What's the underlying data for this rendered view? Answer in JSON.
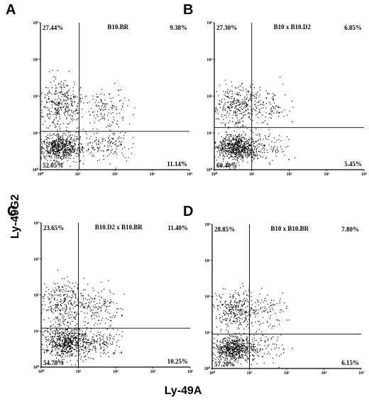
{
  "figure": {
    "ylabel": "Ly-49G2",
    "xlabel": "Ly-49A"
  },
  "chart_data": [
    {
      "type": "scatter",
      "panel": "A",
      "title": "B10.BR",
      "x_scale": "log",
      "y_scale": "log",
      "xlim": [
        1,
        10000
      ],
      "ylim": [
        1,
        10000
      ],
      "xticks": [
        "10⁰",
        "10¹",
        "10²",
        "10³",
        "10⁴"
      ],
      "yticks": [
        "10⁰",
        "10¹",
        "10²",
        "10³",
        "10⁴"
      ],
      "x_gate": 11,
      "y_gate": 11,
      "quadrants": {
        "upper_left": "27.44%",
        "upper_right": "9.38%",
        "lower_left": "52.05%",
        "lower_right": "11.14%"
      },
      "clusters": [
        {
          "cx": 3.5,
          "cy": 4,
          "sx": 0.3,
          "sy": 0.18,
          "n": 650
        },
        {
          "cx": 3.5,
          "cy": 60,
          "sx": 0.3,
          "sy": 0.3,
          "n": 340
        },
        {
          "cx": 60,
          "cy": 5,
          "sx": 0.33,
          "sy": 0.23,
          "n": 140
        },
        {
          "cx": 55,
          "cy": 50,
          "sx": 0.3,
          "sy": 0.26,
          "n": 120
        }
      ]
    },
    {
      "type": "scatter",
      "panel": "B",
      "title": "B10 x B10.D2",
      "x_scale": "log",
      "y_scale": "log",
      "xlim": [
        1,
        10000
      ],
      "ylim": [
        1,
        10000
      ],
      "xticks": [
        "10⁰",
        "10¹",
        "10²",
        "10³",
        "10⁴"
      ],
      "yticks": [
        "10⁰",
        "10¹",
        "10²",
        "10³",
        "10⁴"
      ],
      "x_gate": 10,
      "y_gate": 14,
      "quadrants": {
        "upper_left": "27.30%",
        "upper_right": "6.85%",
        "lower_left": "60.40%",
        "lower_right": "5.45%"
      },
      "clusters": [
        {
          "cx": 4,
          "cy": 4,
          "sx": 0.3,
          "sy": 0.18,
          "n": 750
        },
        {
          "cx": 4,
          "cy": 55,
          "sx": 0.32,
          "sy": 0.3,
          "n": 330
        },
        {
          "cx": 30,
          "cy": 4,
          "sx": 0.3,
          "sy": 0.2,
          "n": 70
        },
        {
          "cx": 30,
          "cy": 50,
          "sx": 0.28,
          "sy": 0.25,
          "n": 90
        }
      ]
    },
    {
      "type": "scatter",
      "panel": "C",
      "title": "B10.D2 x B10.BR",
      "x_scale": "log",
      "y_scale": "log",
      "xlim": [
        1,
        10000
      ],
      "ylim": [
        1,
        10000
      ],
      "xticks": [
        "10⁰",
        "10¹",
        "10²",
        "10³",
        "10⁴"
      ],
      "yticks": [
        "10⁰",
        "10¹",
        "10²",
        "10³",
        "10⁴"
      ],
      "x_gate": 10,
      "y_gate": 12,
      "quadrants": {
        "upper_left": "23.65%",
        "upper_right": "11.40%",
        "lower_left": "54.70%",
        "lower_right": "10.25%"
      },
      "clusters": [
        {
          "cx": 5,
          "cy": 5,
          "sx": 0.33,
          "sy": 0.22,
          "n": 700
        },
        {
          "cx": 4,
          "cy": 60,
          "sx": 0.32,
          "sy": 0.32,
          "n": 300
        },
        {
          "cx": 40,
          "cy": 5,
          "sx": 0.3,
          "sy": 0.22,
          "n": 130
        },
        {
          "cx": 40,
          "cy": 45,
          "sx": 0.3,
          "sy": 0.28,
          "n": 140
        }
      ]
    },
    {
      "type": "scatter",
      "panel": "D",
      "title": "B10 x B10.BR",
      "x_scale": "log",
      "y_scale": "log",
      "xlim": [
        1,
        10000
      ],
      "ylim": [
        1,
        10000
      ],
      "xticks": [
        "10⁰",
        "10¹",
        "10²",
        "10³",
        "10⁴"
      ],
      "yticks": [
        "10⁰",
        "10¹",
        "10²",
        "10³",
        "10⁴"
      ],
      "x_gate": 10,
      "y_gate": 9,
      "quadrants": {
        "upper_left": "28.85%",
        "upper_right": "7.80%",
        "lower_left": "57.20%",
        "lower_right": "6.15%"
      },
      "clusters": [
        {
          "cx": 4,
          "cy": 3.5,
          "sx": 0.28,
          "sy": 0.17,
          "n": 650
        },
        {
          "cx": 4,
          "cy": 40,
          "sx": 0.3,
          "sy": 0.28,
          "n": 320
        },
        {
          "cx": 30,
          "cy": 3.5,
          "sx": 0.3,
          "sy": 0.2,
          "n": 70
        },
        {
          "cx": 30,
          "cy": 40,
          "sx": 0.3,
          "sy": 0.28,
          "n": 90
        }
      ]
    }
  ]
}
